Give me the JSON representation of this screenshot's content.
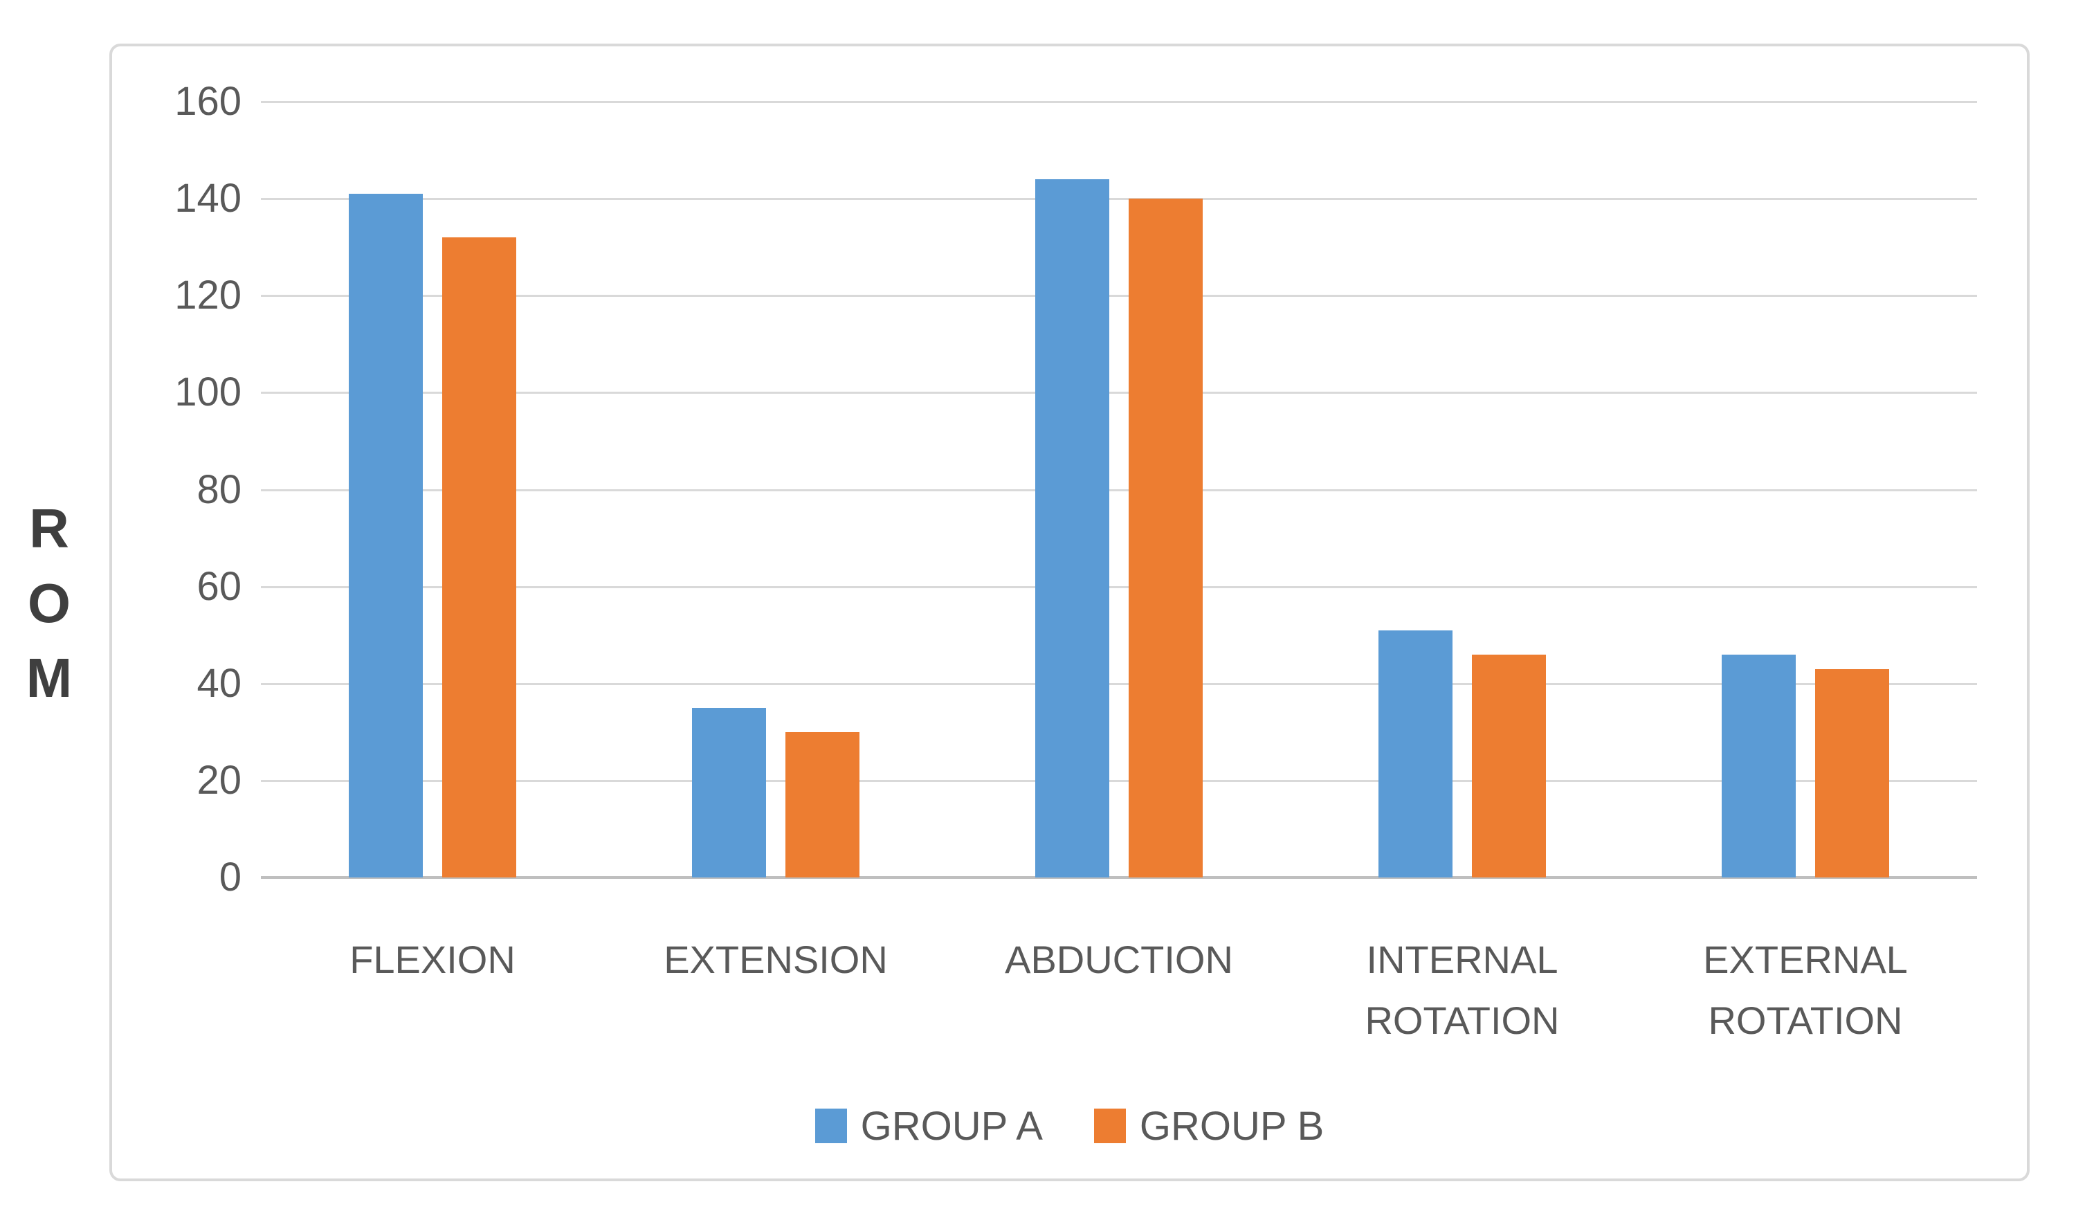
{
  "window": {
    "title": "ROM Bar Chart"
  },
  "y_axis_label": {
    "letters": [
      "R",
      "O",
      "M"
    ],
    "text": "ROM",
    "color": "#3f3f3f"
  },
  "chart_data": {
    "type": "bar",
    "title": "",
    "xlabel": "",
    "ylabel": "ROM",
    "categories": [
      "FLEXION",
      "EXTENSION",
      "ABDUCTION",
      "INTERNAL ROTATION",
      "EXTERNAL ROTATION"
    ],
    "category_label_lines": [
      [
        "FLEXION"
      ],
      [
        "EXTENSION"
      ],
      [
        "ABDUCTION"
      ],
      [
        "INTERNAL",
        "ROTATION"
      ],
      [
        "EXTERNAL",
        "ROTATION"
      ]
    ],
    "series": [
      {
        "name": "GROUP A",
        "color": "#5b9bd5",
        "values": [
          141,
          35,
          144,
          51,
          46
        ]
      },
      {
        "name": "GROUP B",
        "color": "#ed7d31",
        "values": [
          132,
          30,
          140,
          46,
          43
        ]
      }
    ],
    "ylim": [
      0,
      160
    ],
    "yticks": [
      0,
      20,
      40,
      60,
      80,
      100,
      120,
      140,
      160
    ],
    "grid": true,
    "gridline_color": "#d9d9d9",
    "axis_line_color": "#bfbfbf",
    "tick_label_color": "#595959",
    "legend_position": "bottom"
  }
}
